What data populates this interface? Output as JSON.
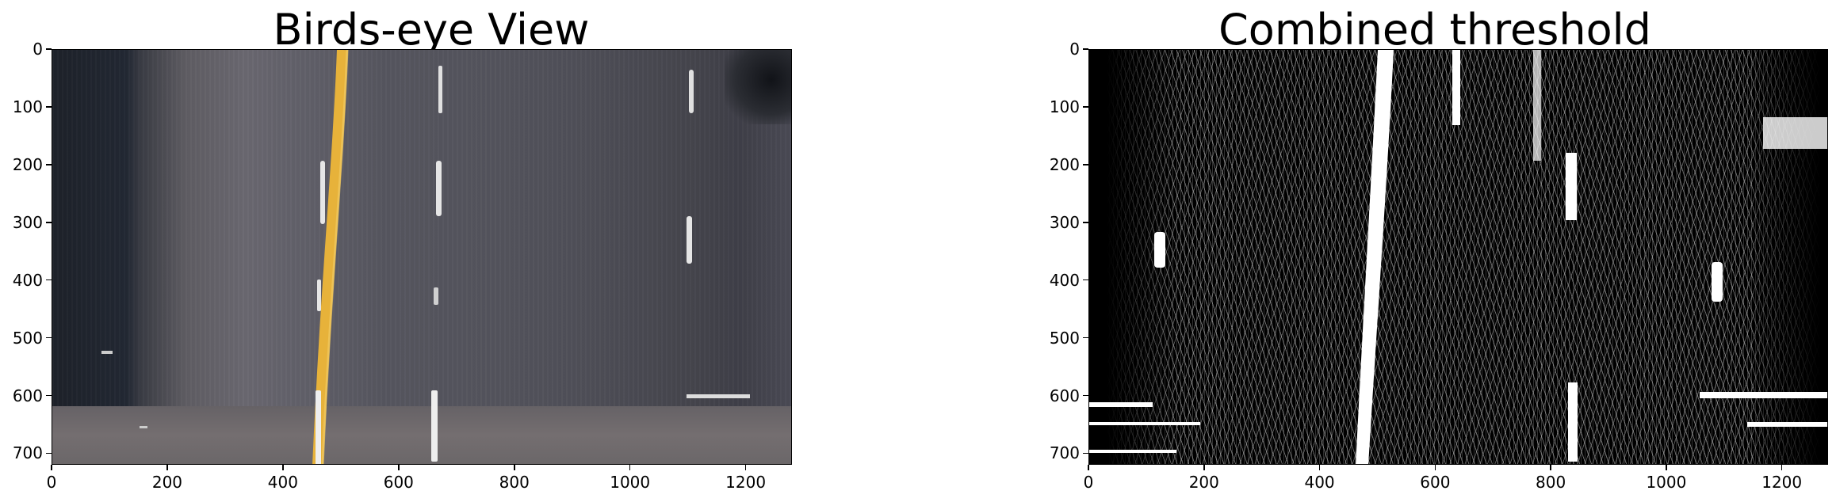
{
  "panels": [
    {
      "title": "Birds-eye View",
      "x_ticks": [
        "0",
        "200",
        "400",
        "600",
        "800",
        "1000",
        "1200"
      ],
      "y_ticks": [
        "0",
        "100",
        "200",
        "300",
        "400",
        "500",
        "600",
        "700"
      ],
      "colors": {
        "yellow_line": "#e8b13a",
        "road": "#5a5961"
      }
    },
    {
      "title": "Combined threshold",
      "x_ticks": [
        "0",
        "200",
        "400",
        "600",
        "800",
        "1000",
        "1200"
      ],
      "y_ticks": [
        "0",
        "100",
        "200",
        "300",
        "400",
        "500",
        "600",
        "700"
      ],
      "colors": {
        "foreground": "#ffffff",
        "background": "#000000"
      }
    }
  ]
}
